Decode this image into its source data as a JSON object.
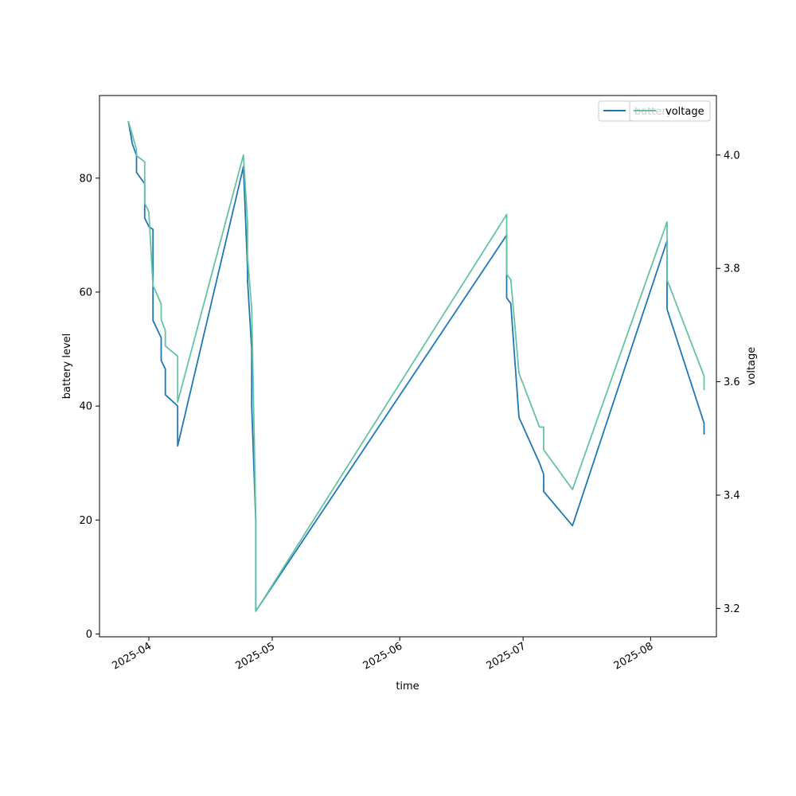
{
  "chart_data": {
    "type": "line",
    "xlabel": "time",
    "ylabel_left": "battery level",
    "ylabel_right": "voltage",
    "x_tick_labels": [
      "2025-04",
      "2025-05",
      "2025-06",
      "2025-07",
      "2025-08"
    ],
    "x_tick_dates": [
      "2025-04-01",
      "2025-05-01",
      "2025-06-01",
      "2025-07-01",
      "2025-08-01"
    ],
    "xlim": [
      "2025-03-20",
      "2025-08-17"
    ],
    "left_ylim": [
      -0.5,
      94.5
    ],
    "left_yticks": [
      0,
      20,
      40,
      60,
      80
    ],
    "right_ylim": [
      3.15,
      4.105
    ],
    "right_yticks": [
      3.2,
      3.4,
      3.6,
      3.8,
      4.0
    ],
    "grid": false,
    "legend_left": {
      "position": "top-right",
      "entries": [
        "battery"
      ]
    },
    "legend_right": {
      "position": "top-right",
      "entries": [
        "voltage"
      ]
    },
    "series": [
      {
        "name": "battery",
        "axis": "left",
        "color": "#1f77b4",
        "points": [
          [
            "2025-03-27",
            90
          ],
          [
            "2025-03-28",
            86
          ],
          [
            "2025-03-29",
            84
          ],
          [
            "2025-03-29",
            81
          ],
          [
            "2025-03-31",
            79
          ],
          [
            "2025-03-31",
            73
          ],
          [
            "2025-04-01",
            71.5
          ],
          [
            "2025-04-02",
            71
          ],
          [
            "2025-04-02",
            55
          ],
          [
            "2025-04-04",
            52
          ],
          [
            "2025-04-04",
            48
          ],
          [
            "2025-04-05",
            46.5
          ],
          [
            "2025-04-05",
            42
          ],
          [
            "2025-04-08",
            40
          ],
          [
            "2025-04-08",
            33
          ],
          [
            "2025-04-24",
            82
          ],
          [
            "2025-04-25",
            64
          ],
          [
            "2025-04-25",
            62
          ],
          [
            "2025-04-26",
            50
          ],
          [
            "2025-04-26",
            40
          ],
          [
            "2025-04-27",
            20
          ],
          [
            "2025-04-27",
            4
          ],
          [
            "2025-06-27",
            70
          ],
          [
            "2025-06-27",
            59
          ],
          [
            "2025-06-28",
            58
          ],
          [
            "2025-06-29",
            48
          ],
          [
            "2025-06-30",
            38
          ],
          [
            "2025-07-05",
            30
          ],
          [
            "2025-07-06",
            28
          ],
          [
            "2025-07-06",
            25
          ],
          [
            "2025-07-13",
            19
          ],
          [
            "2025-08-05",
            69
          ],
          [
            "2025-08-05",
            57
          ],
          [
            "2025-08-14",
            37
          ],
          [
            "2025-08-14",
            35
          ]
        ]
      },
      {
        "name": "voltage",
        "axis": "right",
        "color": "#66c2a5",
        "points": [
          [
            "2025-03-27",
            4.06
          ],
          [
            "2025-03-29",
            4.01
          ],
          [
            "2025-03-29",
            3.999
          ],
          [
            "2025-03-31",
            3.988
          ],
          [
            "2025-03-31",
            3.915
          ],
          [
            "2025-04-01",
            3.9
          ],
          [
            "2025-04-02",
            3.77
          ],
          [
            "2025-04-03",
            3.754
          ],
          [
            "2025-04-04",
            3.737
          ],
          [
            "2025-04-04",
            3.71
          ],
          [
            "2025-04-05",
            3.69
          ],
          [
            "2025-04-05",
            3.663
          ],
          [
            "2025-04-08",
            3.645
          ],
          [
            "2025-04-08",
            3.564
          ],
          [
            "2025-04-24",
            4.0
          ],
          [
            "2025-04-25",
            3.88
          ],
          [
            "2025-04-25",
            3.82
          ],
          [
            "2025-04-26",
            3.73
          ],
          [
            "2025-04-27",
            3.36
          ],
          [
            "2025-04-27",
            3.195
          ],
          [
            "2025-06-27",
            3.895
          ],
          [
            "2025-06-27",
            3.79
          ],
          [
            "2025-06-28",
            3.78
          ],
          [
            "2025-06-29",
            3.7
          ],
          [
            "2025-06-30",
            3.615
          ],
          [
            "2025-07-05",
            3.52
          ],
          [
            "2025-07-06",
            3.52
          ],
          [
            "2025-07-06",
            3.48
          ],
          [
            "2025-07-13",
            3.41
          ],
          [
            "2025-08-05",
            3.882
          ],
          [
            "2025-08-05",
            3.78
          ],
          [
            "2025-08-14",
            3.61
          ],
          [
            "2025-08-14",
            3.585
          ]
        ]
      }
    ]
  }
}
